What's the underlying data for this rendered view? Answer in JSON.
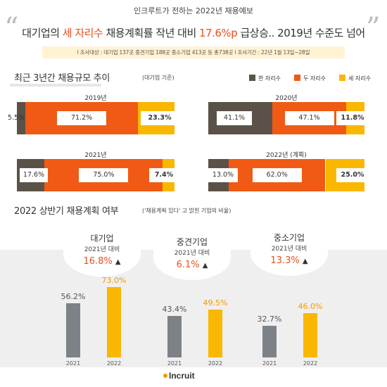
{
  "header": {
    "sub": "인크루트가 전하는 2022년 채용예보",
    "quote_open": "“",
    "quote_close": "”",
    "headline_pre": "대기업의 ",
    "headline_hl1": "세 자리수",
    "headline_mid": " 채용계획률 작년 대비 ",
    "headline_hl2": "17.6%p",
    "headline_post": " 급상승.. 2019년 수준도 넘어",
    "survey": "l 조사대상 : 대기업 137곳 중견기업 188곳 중소기업 413곳 등 총738곳 l 조사기간 : 22년 1월 13일~28일"
  },
  "section1": {
    "title": "최근 3년간 채용규모 추이",
    "note": "(대기업 기준)",
    "legend": [
      "한 자리수",
      "두 자리수",
      "세 자리수"
    ]
  },
  "section2": {
    "title": "2022 상반기 채용계획 여부",
    "note": "('채용계획 있다' 고 밝힌 기업의 비율)"
  },
  "colors": {
    "one_digit": "#5a5248",
    "two_digit": "#f05a14",
    "three_digit": "#f9b700",
    "bar2021": "#7d8288",
    "bar2022": "#f9b700",
    "accent": "#e8501f"
  },
  "chart_data": [
    {
      "type": "bar",
      "stacked": true,
      "orientation": "horizontal",
      "title": "최근 3년간 채용규모 추이",
      "series_names": [
        "한 자리수",
        "두 자리수",
        "세 자리수"
      ],
      "bars": [
        {
          "label": "2019년",
          "values": [
            5.5,
            71.2,
            23.3
          ],
          "labels": [
            "5.5%",
            "71.2%",
            "23.3%"
          ]
        },
        {
          "label": "2020년",
          "values": [
            41.1,
            47.1,
            11.8
          ],
          "labels": [
            "41.1%",
            "47.1%",
            "11.8%"
          ]
        },
        {
          "label": "2021년",
          "values": [
            17.6,
            75.0,
            7.4
          ],
          "labels": [
            "17.6%",
            "75.0%",
            "7.4%"
          ]
        },
        {
          "label": "2022년 (계획)",
          "values": [
            13.0,
            62.0,
            25.0
          ],
          "labels": [
            "13.0%",
            "62.0%",
            "25.0%"
          ]
        }
      ]
    },
    {
      "type": "bar",
      "title": "2022 상반기 채용계획 여부",
      "groups": [
        {
          "name": "대기업",
          "sub": "2021년 대비",
          "change": "16.8%",
          "arrow": "▲",
          "categories": [
            "2021",
            "2022"
          ],
          "values": [
            56.2,
            73.0
          ],
          "labels": [
            "56.2%",
            "73.0%"
          ]
        },
        {
          "name": "중견기업",
          "sub": "2021년 대비",
          "change": "6.1%",
          "arrow": "▲",
          "categories": [
            "2021",
            "2022"
          ],
          "values": [
            43.4,
            49.5
          ],
          "labels": [
            "43.4%",
            "49.5%"
          ]
        },
        {
          "name": "중소기업",
          "sub": "2021년 대비",
          "change": "13.3%",
          "arrow": "▲",
          "categories": [
            "2021",
            "2022"
          ],
          "values": [
            32.7,
            46.0
          ],
          "labels": [
            "32.7%",
            "46.0%"
          ]
        }
      ]
    }
  ],
  "footer": {
    "logo": "Incruit"
  }
}
